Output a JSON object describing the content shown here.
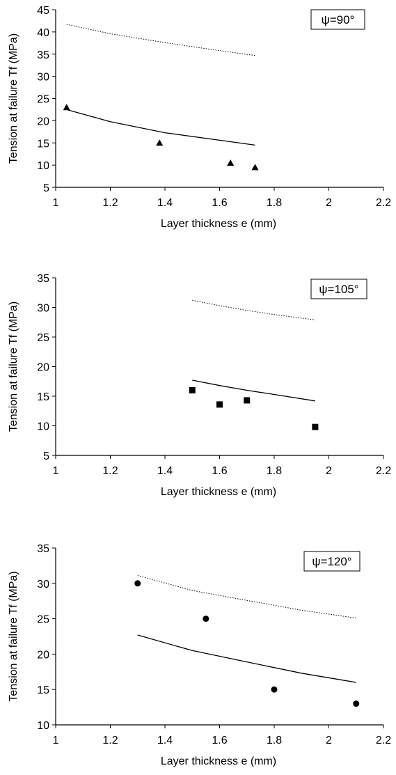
{
  "chart_data": [
    {
      "type": "scatter",
      "legend_box": "ψ=90°",
      "xlabel": "Layer thickness e (mm)",
      "ylabel": "Tension at failure Tf (MPa)",
      "xlim": [
        1,
        2.2
      ],
      "ylim": [
        5,
        45
      ],
      "xticks": [
        1,
        1.2,
        1.4,
        1.6,
        1.8,
        2,
        2.2
      ],
      "yticks": [
        5,
        10,
        15,
        20,
        25,
        30,
        35,
        40,
        45
      ],
      "xtick_labels": [
        "1",
        "1.2",
        "1.4",
        "1.6",
        "1.8",
        "2",
        "2.2"
      ],
      "ytick_labels": [
        "5",
        "10",
        "15",
        "20",
        "25",
        "30",
        "35",
        "40",
        "45"
      ],
      "grid": false,
      "series": [
        {
          "style": "dotted",
          "marker": "none",
          "x": [
            1.04,
            1.2,
            1.4,
            1.6,
            1.73
          ],
          "y": [
            41.7,
            39.6,
            37.6,
            35.8,
            34.7
          ]
        },
        {
          "style": "solid",
          "marker": "none",
          "x": [
            1.04,
            1.2,
            1.4,
            1.6,
            1.73
          ],
          "y": [
            22.5,
            19.8,
            17.3,
            15.6,
            14.5
          ]
        },
        {
          "style": "none",
          "marker": "triangle",
          "x": [
            1.04,
            1.38,
            1.64,
            1.73
          ],
          "y": [
            23,
            15,
            10.5,
            9.5
          ]
        }
      ]
    },
    {
      "type": "scatter",
      "legend_box": "ψ=105°",
      "xlabel": "Layer thickness e (mm)",
      "ylabel": "Tension at failure Tf (MPa)",
      "xlim": [
        1,
        2.2
      ],
      "ylim": [
        5,
        35
      ],
      "xticks": [
        1,
        1.2,
        1.4,
        1.6,
        1.8,
        2,
        2.2
      ],
      "yticks": [
        5,
        10,
        15,
        20,
        25,
        30,
        35
      ],
      "xtick_labels": [
        "1",
        "1.2",
        "1.4",
        "1.6",
        "1.8",
        "2",
        "2.2"
      ],
      "ytick_labels": [
        "5",
        "10",
        "15",
        "20",
        "25",
        "30",
        "35"
      ],
      "grid": false,
      "series": [
        {
          "style": "dotted",
          "marker": "none",
          "x": [
            1.5,
            1.6,
            1.7,
            1.8,
            1.95
          ],
          "y": [
            31.2,
            30.3,
            29.5,
            28.8,
            27.9
          ]
        },
        {
          "style": "solid",
          "marker": "none",
          "x": [
            1.5,
            1.6,
            1.7,
            1.8,
            1.95
          ],
          "y": [
            17.7,
            16.8,
            16.0,
            15.3,
            14.2
          ]
        },
        {
          "style": "none",
          "marker": "square",
          "x": [
            1.5,
            1.6,
            1.7,
            1.95
          ],
          "y": [
            16,
            13.6,
            14.3,
            9.8
          ]
        }
      ]
    },
    {
      "type": "scatter",
      "legend_box": "ψ=120°",
      "xlabel": "Layer thickness e (mm)",
      "ylabel": "Tension at failure Tf (MPa)",
      "xlim": [
        1,
        2.2
      ],
      "ylim": [
        10,
        35
      ],
      "xticks": [
        1,
        1.2,
        1.4,
        1.6,
        1.8,
        2,
        2.2
      ],
      "yticks": [
        10,
        15,
        20,
        25,
        30,
        35
      ],
      "xtick_labels": [
        "1",
        "1.2",
        "1.4",
        "1.6",
        "1.8",
        "2",
        "2.2"
      ],
      "ytick_labels": [
        "10",
        "15",
        "20",
        "25",
        "30",
        "35"
      ],
      "grid": false,
      "series": [
        {
          "style": "dotted",
          "marker": "none",
          "x": [
            1.3,
            1.5,
            1.7,
            1.9,
            2.1
          ],
          "y": [
            31.1,
            29.0,
            27.6,
            26.2,
            25.1
          ]
        },
        {
          "style": "solid",
          "marker": "none",
          "x": [
            1.3,
            1.5,
            1.7,
            1.9,
            2.1
          ],
          "y": [
            22.7,
            20.5,
            18.9,
            17.3,
            16.0
          ]
        },
        {
          "style": "none",
          "marker": "circle",
          "x": [
            1.3,
            1.55,
            1.8,
            2.1
          ],
          "y": [
            30,
            25,
            15,
            13
          ]
        }
      ]
    }
  ]
}
